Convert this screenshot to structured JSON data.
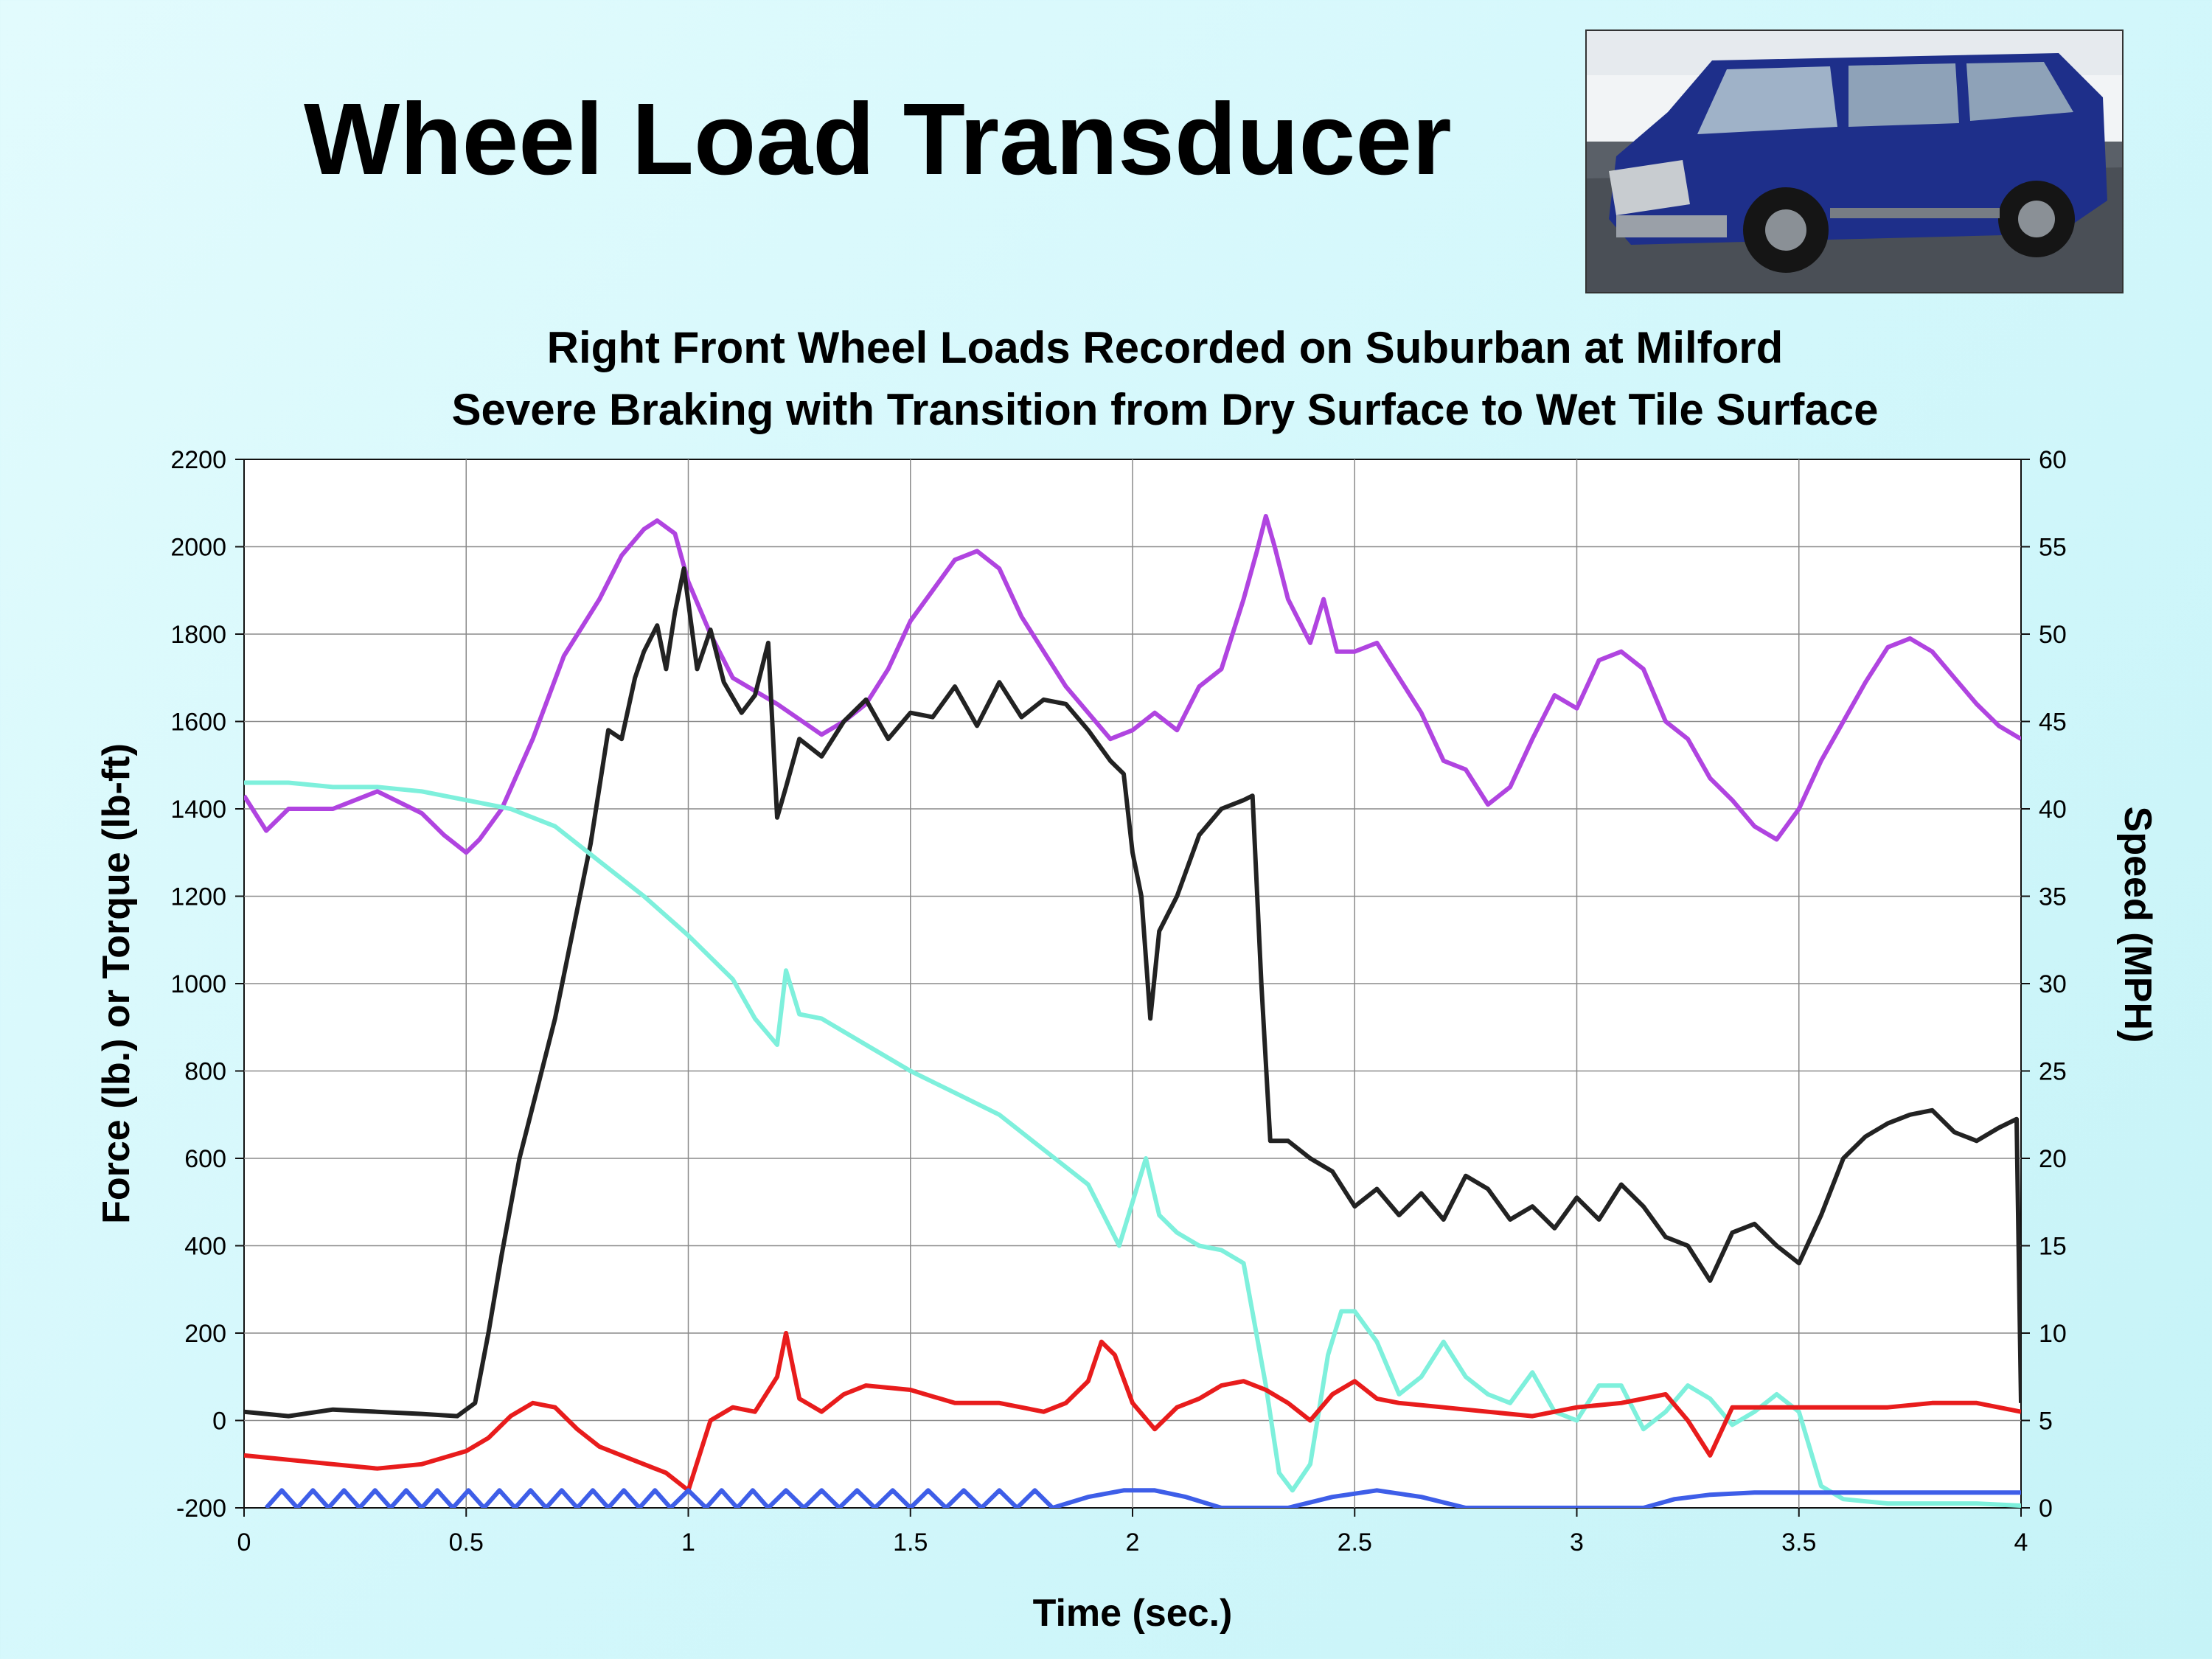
{
  "slide": {
    "title": "Wheel Load Transducer"
  },
  "chart_data": {
    "type": "line",
    "title": "Right Front Wheel Loads Recorded on Suburban at Milford",
    "subtitle": "Severe Braking with Transition from Dry Surface to Wet Tile Surface",
    "xlabel": "Time (sec.)",
    "ylabel": "Force (lb.) or Torque (lb-ft)",
    "y2label": "Speed (MPH)",
    "xlim": [
      0,
      4
    ],
    "ylim": [
      -200,
      2200
    ],
    "y2lim": [
      0,
      60
    ],
    "x_ticks": [
      "0",
      "0.5",
      "1",
      "1.5",
      "2",
      "2.5",
      "3",
      "3.5",
      "4"
    ],
    "y_ticks": [
      "-200",
      "0",
      "200",
      "400",
      "600",
      "800",
      "1000",
      "1200",
      "1400",
      "1600",
      "1800",
      "2000",
      "2200"
    ],
    "y2_ticks": [
      "0",
      "5",
      "10",
      "15",
      "20",
      "25",
      "30",
      "35",
      "40",
      "45",
      "50",
      "55",
      "60"
    ],
    "grid": true,
    "legend": "none",
    "series": [
      {
        "color": "#b044e0",
        "axis": "left",
        "x": [
          0,
          0.05,
          0.1,
          0.2,
          0.3,
          0.4,
          0.45,
          0.5,
          0.53,
          0.58,
          0.65,
          0.72,
          0.8,
          0.85,
          0.9,
          0.93,
          0.97,
          1.0,
          1.05,
          1.1,
          1.2,
          1.3,
          1.35,
          1.4,
          1.45,
          1.5,
          1.55,
          1.6,
          1.65,
          1.7,
          1.75,
          1.8,
          1.85,
          1.9,
          1.95,
          2.0,
          2.05,
          2.1,
          2.15,
          2.2,
          2.25,
          2.28,
          2.3,
          2.32,
          2.35,
          2.4,
          2.43,
          2.46,
          2.5,
          2.55,
          2.6,
          2.65,
          2.7,
          2.75,
          2.8,
          2.85,
          2.9,
          2.95,
          3.0,
          3.05,
          3.1,
          3.15,
          3.2,
          3.25,
          3.3,
          3.35,
          3.4,
          3.45,
          3.5,
          3.55,
          3.6,
          3.65,
          3.7,
          3.75,
          3.8,
          3.85,
          3.9,
          3.95,
          4.0
        ],
        "values": [
          1430,
          1350,
          1400,
          1400,
          1440,
          1390,
          1340,
          1300,
          1330,
          1400,
          1560,
          1750,
          1880,
          1980,
          2040,
          2060,
          2030,
          1920,
          1800,
          1700,
          1640,
          1570,
          1600,
          1640,
          1720,
          1830,
          1900,
          1970,
          1990,
          1950,
          1840,
          1760,
          1680,
          1620,
          1560,
          1580,
          1620,
          1580,
          1680,
          1720,
          1880,
          1990,
          2070,
          2000,
          1880,
          1780,
          1880,
          1760,
          1760,
          1780,
          1700,
          1620,
          1510,
          1490,
          1410,
          1450,
          1560,
          1660,
          1630,
          1740,
          1760,
          1720,
          1600,
          1560,
          1470,
          1420,
          1360,
          1330,
          1400,
          1510,
          1600,
          1690,
          1770,
          1790,
          1760,
          1700,
          1640,
          1590,
          1560
        ]
      },
      {
        "color": "#222222",
        "axis": "left",
        "x": [
          0,
          0.1,
          0.2,
          0.3,
          0.4,
          0.48,
          0.52,
          0.55,
          0.58,
          0.62,
          0.66,
          0.7,
          0.74,
          0.78,
          0.82,
          0.85,
          0.88,
          0.9,
          0.93,
          0.95,
          0.97,
          0.99,
          1.02,
          1.05,
          1.08,
          1.12,
          1.15,
          1.18,
          1.2,
          1.22,
          1.25,
          1.3,
          1.35,
          1.4,
          1.45,
          1.5,
          1.55,
          1.6,
          1.65,
          1.7,
          1.75,
          1.8,
          1.85,
          1.9,
          1.95,
          1.98,
          2.0,
          2.02,
          2.04,
          2.06,
          2.1,
          2.15,
          2.2,
          2.25,
          2.27,
          2.29,
          2.31,
          2.35,
          2.4,
          2.45,
          2.5,
          2.55,
          2.6,
          2.65,
          2.7,
          2.75,
          2.8,
          2.85,
          2.9,
          2.95,
          3.0,
          3.05,
          3.1,
          3.15,
          3.2,
          3.25,
          3.3,
          3.35,
          3.4,
          3.45,
          3.5,
          3.55,
          3.6,
          3.65,
          3.7,
          3.75,
          3.8,
          3.85,
          3.9,
          3.95,
          3.99,
          4.0
        ],
        "values": [
          20,
          10,
          25,
          20,
          15,
          10,
          40,
          200,
          380,
          600,
          760,
          920,
          1120,
          1320,
          1580,
          1560,
          1700,
          1760,
          1820,
          1720,
          1850,
          1950,
          1720,
          1810,
          1690,
          1620,
          1660,
          1780,
          1380,
          1450,
          1560,
          1520,
          1600,
          1650,
          1560,
          1620,
          1610,
          1680,
          1590,
          1690,
          1610,
          1650,
          1640,
          1580,
          1510,
          1480,
          1300,
          1200,
          920,
          1120,
          1200,
          1340,
          1400,
          1420,
          1430,
          1000,
          640,
          640,
          600,
          570,
          490,
          530,
          470,
          520,
          460,
          560,
          530,
          460,
          490,
          440,
          510,
          460,
          540,
          490,
          420,
          400,
          320,
          430,
          450,
          400,
          360,
          470,
          600,
          650,
          680,
          700,
          710,
          660,
          640,
          670,
          690,
          40
        ]
      },
      {
        "color": "#7ef0dc",
        "axis": "left",
        "x": [
          0,
          0.1,
          0.2,
          0.3,
          0.4,
          0.5,
          0.6,
          0.7,
          0.8,
          0.9,
          1.0,
          1.1,
          1.15,
          1.2,
          1.22,
          1.25,
          1.3,
          1.4,
          1.5,
          1.6,
          1.7,
          1.8,
          1.9,
          1.97,
          2.0,
          2.03,
          2.06,
          2.1,
          2.15,
          2.2,
          2.25,
          2.3,
          2.33,
          2.36,
          2.4,
          2.44,
          2.47,
          2.5,
          2.55,
          2.6,
          2.65,
          2.7,
          2.75,
          2.8,
          2.85,
          2.9,
          2.95,
          3.0,
          3.05,
          3.1,
          3.15,
          3.2,
          3.25,
          3.3,
          3.35,
          3.4,
          3.45,
          3.5,
          3.55,
          3.6,
          3.7,
          3.8,
          3.9,
          4.0
        ],
        "values": [
          1460,
          1460,
          1450,
          1450,
          1440,
          1420,
          1400,
          1360,
          1280,
          1200,
          1110,
          1010,
          920,
          860,
          1030,
          930,
          920,
          860,
          800,
          750,
          700,
          620,
          540,
          400,
          500,
          600,
          470,
          430,
          400,
          390,
          360,
          80,
          -120,
          -160,
          -100,
          150,
          250,
          250,
          180,
          60,
          100,
          180,
          100,
          60,
          40,
          110,
          20,
          0,
          80,
          80,
          -20,
          20,
          80,
          50,
          -10,
          20,
          60,
          20,
          -150,
          -180,
          -190,
          -190,
          -190,
          -195
        ]
      },
      {
        "color": "#e81c1c",
        "axis": "left",
        "x": [
          0,
          0.1,
          0.2,
          0.3,
          0.4,
          0.5,
          0.55,
          0.6,
          0.65,
          0.7,
          0.75,
          0.8,
          0.85,
          0.9,
          0.95,
          1.0,
          1.05,
          1.1,
          1.15,
          1.2,
          1.22,
          1.25,
          1.3,
          1.35,
          1.4,
          1.5,
          1.6,
          1.7,
          1.8,
          1.85,
          1.9,
          1.93,
          1.96,
          2.0,
          2.05,
          2.1,
          2.15,
          2.2,
          2.25,
          2.3,
          2.35,
          2.4,
          2.45,
          2.5,
          2.55,
          2.6,
          2.7,
          2.8,
          2.9,
          3.0,
          3.1,
          3.2,
          3.25,
          3.3,
          3.35,
          3.5,
          3.6,
          3.7,
          3.8,
          3.9,
          4.0
        ],
        "values": [
          -80,
          -90,
          -100,
          -110,
          -100,
          -70,
          -40,
          10,
          40,
          30,
          -20,
          -60,
          -80,
          -100,
          -120,
          -160,
          0,
          30,
          20,
          100,
          200,
          50,
          20,
          60,
          80,
          70,
          40,
          40,
          20,
          40,
          90,
          180,
          150,
          40,
          -20,
          30,
          50,
          80,
          90,
          70,
          40,
          0,
          60,
          90,
          50,
          40,
          30,
          20,
          10,
          30,
          40,
          60,
          0,
          -80,
          30,
          30,
          30,
          30,
          40,
          40,
          20
        ]
      },
      {
        "color": "#3e5ee8",
        "axis": "left",
        "x": [
          0.05,
          0.085,
          0.12,
          0.155,
          0.19,
          0.225,
          0.26,
          0.295,
          0.33,
          0.365,
          0.4,
          0.435,
          0.47,
          0.505,
          0.54,
          0.575,
          0.61,
          0.645,
          0.68,
          0.715,
          0.75,
          0.785,
          0.82,
          0.855,
          0.89,
          0.925,
          0.96,
          1.0,
          1.04,
          1.075,
          1.11,
          1.145,
          1.18,
          1.22,
          1.26,
          1.3,
          1.34,
          1.38,
          1.42,
          1.46,
          1.5,
          1.54,
          1.58,
          1.62,
          1.66,
          1.7,
          1.74,
          1.78,
          1.82,
          1.9,
          1.98,
          2.05,
          2.12,
          2.2,
          2.35,
          2.45,
          2.55,
          2.65,
          2.75,
          3.15,
          3.22,
          3.3,
          3.4,
          3.6,
          4.0
        ],
        "values": [
          -200,
          -160,
          -200,
          -160,
          -200,
          -160,
          -200,
          -160,
          -200,
          -160,
          -200,
          -160,
          -200,
          -160,
          -200,
          -160,
          -200,
          -160,
          -200,
          -160,
          -200,
          -160,
          -200,
          -160,
          -200,
          -160,
          -200,
          -160,
          -200,
          -160,
          -200,
          -160,
          -200,
          -160,
          -200,
          -160,
          -200,
          -160,
          -200,
          -160,
          -200,
          -160,
          -200,
          -160,
          -200,
          -160,
          -200,
          -160,
          -200,
          -175,
          -160,
          -160,
          -175,
          -200,
          -200,
          -175,
          -160,
          -175,
          -200,
          -200,
          -180,
          -170,
          -165,
          -165,
          -165
        ]
      }
    ]
  }
}
